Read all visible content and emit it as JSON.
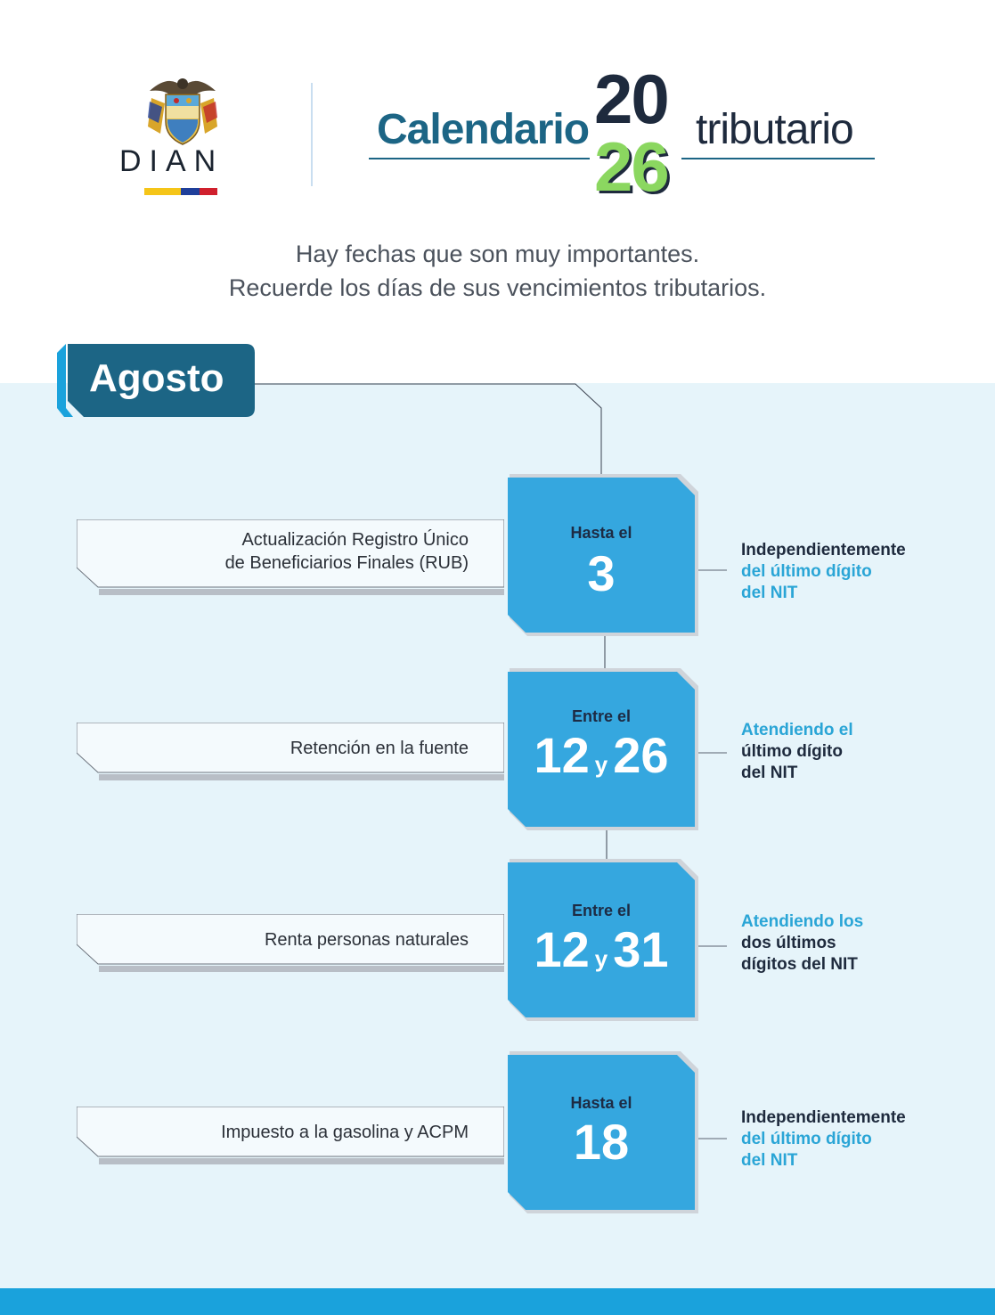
{
  "header": {
    "brand": "DIAN",
    "title_left": "Calendario",
    "year_top": "20",
    "year_bottom": "26",
    "title_right": "tributario"
  },
  "intro": {
    "line1": "Hay fechas que son muy importantes.",
    "line2": "Recuerde los días de sus vencimientos tributarios."
  },
  "month": "Agosto",
  "items": [
    {
      "label_line1": "Actualización Registro Único",
      "label_line2": "de Beneficiarios Finales (RUB)",
      "date_head": "Hasta el",
      "date_a": "3",
      "note_line1": "Independientemente",
      "note_line2": "del último dígito",
      "note_line3": "del  NIT"
    },
    {
      "label_line1": "Retención en la fuente",
      "date_head": "Entre el",
      "date_a": "12",
      "date_sep": "y",
      "date_b": "26",
      "note_line1": "Atendiendo el",
      "note_line2": "último dígito",
      "note_line3": "del NIT"
    },
    {
      "label_line1": "Renta personas naturales",
      "date_head": "Entre el",
      "date_a": "12",
      "date_sep": "y",
      "date_b": "31",
      "note_line1": "Atendiendo los",
      "note_line2": "dos últimos",
      "note_line3": "dígitos del NIT"
    },
    {
      "label_line1": "Impuesto a la gasolina y ACPM",
      "date_head": "Hasta el",
      "date_a": "18",
      "note_line1": "Independientemente",
      "note_line2": "del último dígito",
      "note_line3": "del  NIT"
    }
  ],
  "colors": {
    "panel_bg": "#e6f4fa",
    "date_block": "#35a7df",
    "month_tab": "#1c6585",
    "accent_blue": "#2aa5d6",
    "accent_green": "#8bd760",
    "bottom_bar": "#1aa2dc",
    "flag": [
      "#f5c518",
      "#1f3f9a",
      "#d0202d"
    ]
  }
}
